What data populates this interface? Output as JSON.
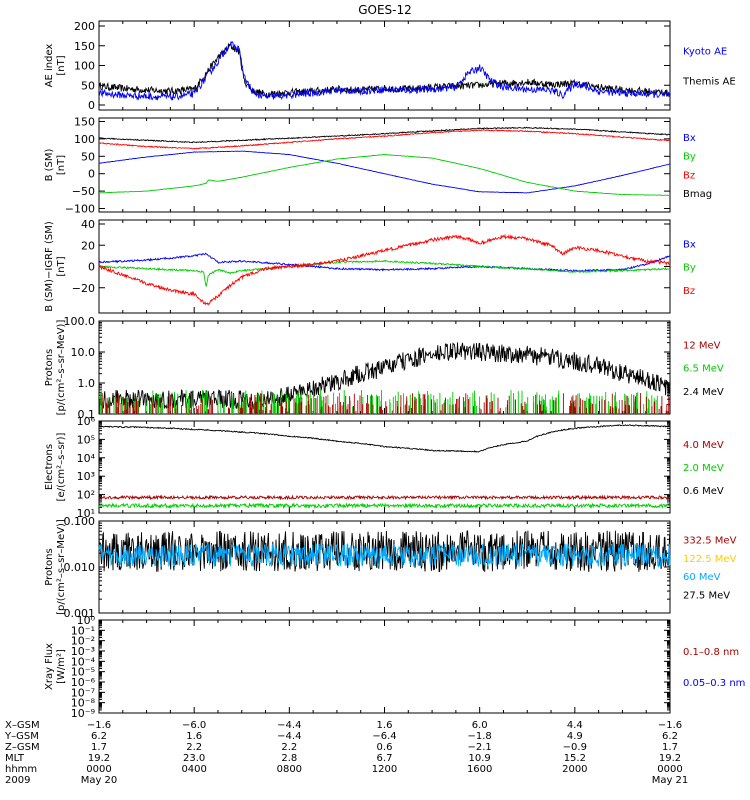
{
  "title": "GOES-12",
  "chart_data": {
    "type": "line",
    "title": "GOES-12",
    "panels": [
      {
        "id": "ae",
        "ylabel": [
          "AE index",
          "[nT]"
        ],
        "scale": "linear",
        "ylim": [
          0,
          200
        ],
        "ticks": [
          0,
          50,
          100,
          150,
          200
        ],
        "ticklabels": [
          "0",
          "50",
          "100",
          "150",
          "200"
        ],
        "legend": [
          {
            "name": "Kyoto AE",
            "color": "#0000ff"
          },
          {
            "name": "Themis AE",
            "color": "#000000"
          }
        ],
        "series": [
          {
            "name": "Themis AE",
            "color": "#000000",
            "noise": 9,
            "x": [
              0,
              1,
              2,
              3,
              4,
              4.5,
              5,
              5.5,
              5.9,
              6.1,
              6.5,
              7,
              7.5,
              8,
              9,
              10,
              11,
              12,
              13,
              14,
              15,
              16,
              17,
              18,
              19,
              20,
              21,
              22,
              23,
              24
            ],
            "y": [
              48,
              42,
              38,
              35,
              40,
              80,
              120,
              150,
              135,
              60,
              35,
              28,
              30,
              32,
              35,
              40,
              38,
              42,
              40,
              45,
              48,
              50,
              55,
              58,
              52,
              55,
              45,
              38,
              35,
              30
            ]
          },
          {
            "name": "Kyoto AE",
            "color": "#0000ff",
            "noise": 9,
            "x": [
              0,
              1,
              2,
              3,
              4,
              4.5,
              5,
              5.5,
              5.9,
              6.1,
              6.5,
              7,
              8,
              9,
              10,
              11,
              12,
              13,
              14,
              15,
              15.5,
              16,
              16.5,
              17,
              18,
              19,
              19.5,
              20,
              21,
              22,
              23,
              24
            ],
            "y": [
              30,
              25,
              22,
              20,
              28,
              70,
              110,
              155,
              140,
              70,
              30,
              20,
              25,
              30,
              38,
              35,
              40,
              38,
              40,
              45,
              80,
              95,
              60,
              45,
              40,
              38,
              25,
              55,
              35,
              30,
              28,
              25
            ]
          }
        ]
      },
      {
        "id": "b",
        "ylabel": [
          "B (SM)",
          "[nT]"
        ],
        "scale": "linear",
        "ylim": [
          -110,
          160
        ],
        "ticks": [
          -100,
          -50,
          0,
          50,
          100,
          150
        ],
        "ticklabels": [
          "−100",
          "−50",
          "0",
          "50",
          "100",
          "150"
        ],
        "legend": [
          {
            "name": "Bx",
            "color": "#0000ff"
          },
          {
            "name": "By",
            "color": "#00cc00"
          },
          {
            "name": "Bz",
            "color": "#ff0000"
          },
          {
            "name": "Bmag",
            "color": "#000000"
          }
        ],
        "series": [
          {
            "name": "Bmag",
            "color": "#000000",
            "noise": 1.5,
            "x": [
              0,
              2,
              4,
              6,
              8,
              10,
              12,
              14,
              16,
              18,
              20,
              22,
              24
            ],
            "y": [
              102,
              96,
              90,
              96,
              102,
              108,
              115,
              123,
              130,
              132,
              128,
              120,
              112
            ]
          },
          {
            "name": "Bz",
            "color": "#ff0000",
            "noise": 1.5,
            "x": [
              0,
              2,
              4,
              6,
              8,
              10,
              12,
              14,
              16,
              18,
              20,
              22,
              24
            ],
            "y": [
              88,
              78,
              72,
              80,
              90,
              100,
              108,
              118,
              125,
              122,
              115,
              105,
              95
            ]
          },
          {
            "name": "Bx",
            "color": "#0000ff",
            "noise": 0.5,
            "x": [
              0,
              2,
              4,
              6,
              8,
              10,
              12,
              14,
              16,
              18,
              20,
              22,
              24
            ],
            "y": [
              30,
              48,
              62,
              65,
              55,
              30,
              0,
              -30,
              -52,
              -55,
              -35,
              -5,
              28
            ]
          },
          {
            "name": "By",
            "color": "#00cc00",
            "noise": 0.5,
            "x": [
              0,
              2,
              4,
              4.5,
              4.6,
              5,
              6,
              8,
              10,
              12,
              14,
              16,
              18,
              20,
              22,
              24
            ],
            "y": [
              -55,
              -50,
              -35,
              -28,
              -18,
              -22,
              -10,
              18,
              42,
              55,
              45,
              15,
              -25,
              -50,
              -60,
              -62
            ]
          }
        ]
      },
      {
        "id": "dB",
        "ylabel": [
          "B (SM)−IGRF (SM)",
          "[nT]"
        ],
        "scale": "linear",
        "ylim": [
          -40,
          40
        ],
        "ticks": [
          -20,
          0,
          20,
          40
        ],
        "ticklabels": [
          "−20",
          "0",
          "20",
          "40"
        ],
        "legend": [
          {
            "name": "Bx",
            "color": "#0000ff"
          },
          {
            "name": "By",
            "color": "#00cc00"
          },
          {
            "name": "Bz",
            "color": "#ff0000"
          }
        ],
        "series": [
          {
            "name": "Bx",
            "color": "#0000ff",
            "noise": 0.8,
            "x": [
              0,
              2,
              4,
              4.5,
              5,
              6,
              8,
              10,
              12,
              14,
              16,
              18,
              20,
              22,
              23,
              24
            ],
            "y": [
              4,
              6,
              10,
              12,
              4,
              5,
              2,
              -2,
              -3,
              -2,
              0,
              -2,
              -4,
              -3,
              2,
              10
            ]
          },
          {
            "name": "By",
            "color": "#00cc00",
            "noise": 0.8,
            "x": [
              0,
              2,
              4,
              4.4,
              4.5,
              4.6,
              5,
              5.5,
              6,
              8,
              10,
              12,
              14,
              16,
              18,
              20,
              22,
              24
            ],
            "y": [
              0,
              -2,
              -4,
              -5,
              -20,
              -8,
              -3,
              -6,
              -4,
              0,
              4,
              5,
              3,
              0,
              -2,
              -5,
              -4,
              -2
            ]
          },
          {
            "name": "Bz",
            "color": "#ff0000",
            "noise": 1.5,
            "x": [
              0,
              1,
              2,
              3,
              4,
              4.5,
              5,
              5.5,
              6,
              7,
              8,
              9,
              10,
              11,
              12,
              13,
              14,
              15,
              15.5,
              16,
              17,
              18,
              19,
              19.5,
              20,
              21,
              22,
              23,
              24
            ],
            "y": [
              0,
              -8,
              -16,
              -22,
              -26,
              -36,
              -28,
              -18,
              -10,
              -2,
              0,
              2,
              5,
              10,
              15,
              20,
              25,
              28,
              26,
              22,
              28,
              26,
              20,
              12,
              18,
              15,
              10,
              5,
              3
            ]
          }
        ]
      },
      {
        "id": "protons_low",
        "ylabel": [
          "Protons",
          "[p/(cm²–s–sr–MeV)]"
        ],
        "scale": "log",
        "ylim": [
          0.1,
          100
        ],
        "ticks": [
          0.1,
          1.0,
          10.0,
          100.0
        ],
        "ticklabels": [
          "0.1",
          "1.0",
          "10.0",
          "100.0"
        ],
        "legend": [
          {
            "name": "12 MeV",
            "color": "#aa0000"
          },
          {
            "name": "6.5 MeV",
            "color": "#00cc00"
          },
          {
            "name": "2.4 MeV",
            "color": "#000000"
          }
        ],
        "series": [
          {
            "name": "2.4 MeV",
            "color": "#000000",
            "noise_log": 0.3,
            "x": [
              0,
              2,
              4,
              6,
              7,
              8,
              10,
              12,
              14,
              15,
              16,
              18,
              20,
              22,
              24
            ],
            "y": [
              0.3,
              0.3,
              0.3,
              0.3,
              0.3,
              0.4,
              1.0,
              3.0,
              8.0,
              11.0,
              10.0,
              8.0,
              5.0,
              2.0,
              0.6
            ]
          },
          {
            "name": "6.5 MeV",
            "color": "#00cc00",
            "spiky": true,
            "x": [
              0,
              24
            ],
            "y": [
              0.15,
              0.15
            ]
          },
          {
            "name": "12 MeV",
            "color": "#aa0000",
            "spiky": true,
            "x": [
              0,
              24
            ],
            "y": [
              0.12,
              0.12
            ]
          }
        ]
      },
      {
        "id": "electrons",
        "ylabel": [
          "Electrons",
          "[e/(cm²–s–sr)]"
        ],
        "scale": "log",
        "ylim": [
          10,
          1000000
        ],
        "ticks": [
          10,
          100,
          1000,
          10000,
          100000,
          1000000
        ],
        "ticklabels": [
          "10¹",
          "10²",
          "10³",
          "10⁴",
          "10⁵",
          "10⁶"
        ],
        "legend": [
          {
            "name": "4.0 MeV",
            "color": "#aa0000"
          },
          {
            "name": "2.0 MeV",
            "color": "#00cc00"
          },
          {
            "name": "0.6 MeV",
            "color": "#000000"
          }
        ],
        "series": [
          {
            "name": "0.6 MeV",
            "color": "#000000",
            "noise_log": 0.03,
            "x": [
              0,
              2,
              4,
              6,
              8,
              10,
              12,
              14,
              16,
              18,
              20,
              22,
              24
            ],
            "y": [
              500000,
              450000,
              350000,
              250000,
              150000,
              80000,
              40000,
              25000,
              22000,
              80000,
              400000,
              600000,
              500000
            ]
          },
          {
            "name": "4.0 MeV",
            "color": "#aa0000",
            "noise_log": 0.08,
            "x": [
              0,
              24
            ],
            "y": [
              70,
              70
            ]
          },
          {
            "name": "2.0 MeV",
            "color": "#00cc00",
            "noise_log": 0.1,
            "x": [
              0,
              24
            ],
            "y": [
              25,
              25
            ]
          }
        ]
      },
      {
        "id": "protons_high",
        "ylabel": [
          "Protons",
          "[p/(cm²–s–sr–MeV)]"
        ],
        "scale": "log",
        "ylim": [
          0.001,
          0.1
        ],
        "ticks": [
          0.001,
          0.01,
          0.1
        ],
        "ticklabels": [
          "0.001",
          "0.010",
          "0.100"
        ],
        "legend": [
          {
            "name": "332.5 MeV",
            "color": "#aa0000"
          },
          {
            "name": "122.5 MeV",
            "color": "#ffcc00"
          },
          {
            "name": "60 MeV",
            "color": "#00aaff"
          },
          {
            "name": "27.5 MeV",
            "color": "#000000"
          }
        ],
        "series": [
          {
            "name": "27.5 MeV",
            "color": "#000000",
            "noise_log": 0.45,
            "x": [
              0,
              24
            ],
            "y": [
              0.022,
              0.022
            ]
          },
          {
            "name": "60 MeV",
            "color": "#00aaff",
            "noise_log": 0.25,
            "x": [
              0,
              24
            ],
            "y": [
              0.018,
              0.018
            ]
          }
        ]
      },
      {
        "id": "xray",
        "ylabel": [
          "Xray Flux",
          "[W/m²]"
        ],
        "scale": "log",
        "ylim": [
          1e-09,
          1
        ],
        "ticks": [
          1e-09,
          1e-08,
          1e-07,
          1e-06,
          1e-05,
          0.0001,
          0.001,
          0.01,
          0.1,
          1
        ],
        "ticklabels": [
          "10⁻⁹",
          "10⁻⁸",
          "10⁻⁷",
          "10⁻⁶",
          "10⁻⁵",
          "10⁻⁴",
          "10⁻³",
          "10⁻²",
          "10⁻¹",
          "10⁰"
        ],
        "legend": [
          {
            "name": "0.1–0.8 nm",
            "color": "#aa0000"
          },
          {
            "name": "0.05–0.3 nm",
            "color": "#0000ff"
          }
        ],
        "series": []
      }
    ],
    "x_axis": {
      "range": [
        0,
        24
      ],
      "ticks": [
        0,
        4,
        8,
        12,
        16,
        20,
        24
      ],
      "rows": [
        {
          "label": "X–GSM",
          "values": [
            "−1.6",
            "−6.0",
            "−4.4",
            "1.6",
            "6.0",
            "4.4",
            "−1.6"
          ]
        },
        {
          "label": "Y–GSM",
          "values": [
            "6.2",
            "1.6",
            "−4.4",
            "−6.4",
            "−1.8",
            "4.9",
            "6.2"
          ]
        },
        {
          "label": "Z–GSM",
          "values": [
            "1.7",
            "2.2",
            "2.2",
            "0.6",
            "−2.1",
            "−0.9",
            "1.7"
          ]
        },
        {
          "label": "MLT",
          "values": [
            "19.2",
            "23.0",
            "2.8",
            "6.7",
            "10.9",
            "15.2",
            "19.2"
          ]
        },
        {
          "label": "hhmm",
          "values": [
            "0000",
            "0400",
            "0800",
            "1200",
            "1600",
            "2000",
            "0000"
          ]
        },
        {
          "label": "2009",
          "values": [
            "May 20",
            "",
            "",
            "",
            "",
            "",
            "May 21"
          ]
        }
      ]
    }
  }
}
